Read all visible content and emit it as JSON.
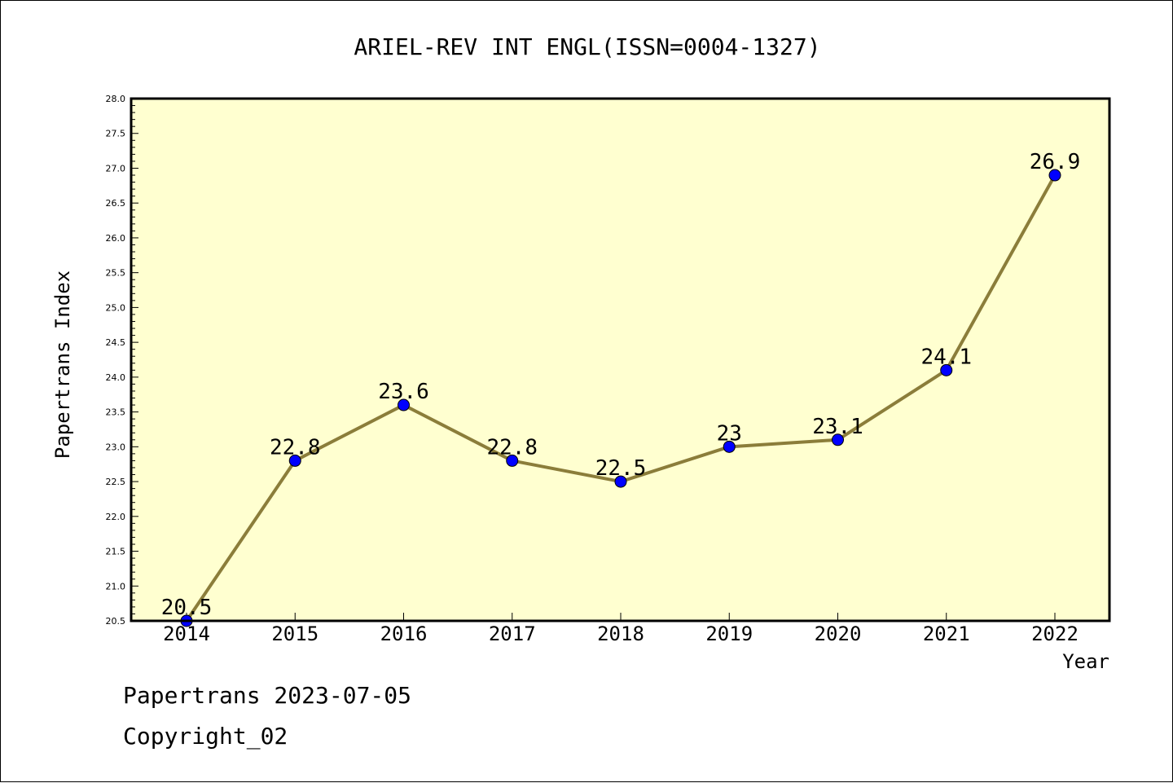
{
  "chart_data": {
    "type": "line",
    "title": "ARIEL-REV INT ENGL(ISSN=0004-1327)",
    "xlabel": "Year",
    "ylabel": "Papertrans Index",
    "x": [
      "2014",
      "2015",
      "2016",
      "2017",
      "2018",
      "2019",
      "2020",
      "2021",
      "2022"
    ],
    "series": [
      {
        "values": [
          20.5,
          22.8,
          23.6,
          22.8,
          22.5,
          23.0,
          23.1,
          24.1,
          26.9
        ],
        "labels": [
          "20.5",
          "22.8",
          "23.6",
          "22.8",
          "22.5",
          "23",
          "23.1",
          "24.1",
          "26.9"
        ]
      }
    ],
    "ylim": [
      20.5,
      28.0
    ],
    "yticks": [
      "20.5",
      "21.0",
      "21.5",
      "22.0",
      "22.5",
      "23.0",
      "23.5",
      "24.0",
      "24.5",
      "25.0",
      "25.5",
      "26.0",
      "26.5",
      "27.0",
      "27.5",
      "28.0"
    ],
    "grid": false,
    "colors": {
      "plot_background": "#FFFFD0",
      "line": "#8B7D3A",
      "marker": "#0000FF"
    }
  },
  "footer": {
    "date_text": "Papertrans 2023-07-05",
    "copyright_text": "Copyright_02"
  }
}
